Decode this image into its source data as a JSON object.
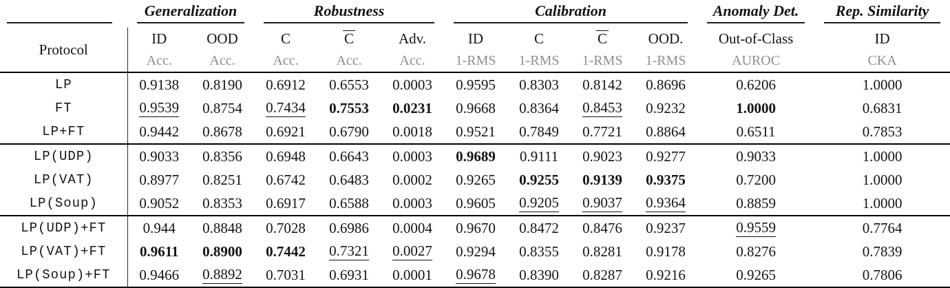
{
  "table": {
    "groups": [
      {
        "label": "",
        "span": 1
      },
      {
        "label": "Generalization",
        "span": 2
      },
      {
        "label": "Robustness",
        "span": 3
      },
      {
        "label": "Calibration",
        "span": 4
      },
      {
        "label": "Anomaly Det.",
        "span": 1
      },
      {
        "label": "Rep. Similarity",
        "span": 1
      }
    ],
    "protocol_header": "Protocol",
    "columns": [
      {
        "top": "ID",
        "sub": "Acc.",
        "overline": false
      },
      {
        "top": "OOD",
        "sub": "Acc.",
        "overline": false
      },
      {
        "top": "C",
        "sub": "Acc.",
        "overline": false
      },
      {
        "top": "C",
        "sub": "Acc.",
        "overline": true
      },
      {
        "top": "Adv.",
        "sub": "Acc.",
        "overline": false
      },
      {
        "top": "ID",
        "sub": "1-RMS",
        "overline": false
      },
      {
        "top": "C",
        "sub": "1-RMS",
        "overline": false
      },
      {
        "top": "C",
        "sub": "1-RMS",
        "overline": true
      },
      {
        "top": "OOD.",
        "sub": "1-RMS",
        "overline": false
      },
      {
        "top": "Out-of-Class",
        "sub": "AUROC",
        "overline": false
      },
      {
        "top": "ID",
        "sub": "CKA",
        "overline": false
      }
    ],
    "rows": [
      {
        "protocol": "LP",
        "block_end": false,
        "cells": [
          {
            "v": "0.9138"
          },
          {
            "v": "0.8190"
          },
          {
            "v": "0.6912"
          },
          {
            "v": "0.6553"
          },
          {
            "v": "0.0003"
          },
          {
            "v": "0.9595"
          },
          {
            "v": "0.8303"
          },
          {
            "v": "0.8142"
          },
          {
            "v": "0.8696"
          },
          {
            "v": "0.6206"
          },
          {
            "v": "1.0000"
          }
        ]
      },
      {
        "protocol": "FT",
        "block_end": false,
        "cells": [
          {
            "v": "0.9539",
            "u": true
          },
          {
            "v": "0.8754"
          },
          {
            "v": "0.7434",
            "u": true
          },
          {
            "v": "0.7553",
            "b": true
          },
          {
            "v": "0.0231",
            "b": true
          },
          {
            "v": "0.9668"
          },
          {
            "v": "0.8364"
          },
          {
            "v": "0.8453",
            "u": true
          },
          {
            "v": "0.9232"
          },
          {
            "v": "1.0000",
            "b": true
          },
          {
            "v": "0.6831"
          }
        ]
      },
      {
        "protocol": "LP+FT",
        "block_end": true,
        "cells": [
          {
            "v": "0.9442"
          },
          {
            "v": "0.8678"
          },
          {
            "v": "0.6921"
          },
          {
            "v": "0.6790"
          },
          {
            "v": "0.0018"
          },
          {
            "v": "0.9521"
          },
          {
            "v": "0.7849"
          },
          {
            "v": "0.7721"
          },
          {
            "v": "0.8864"
          },
          {
            "v": "0.6511"
          },
          {
            "v": "0.7853"
          }
        ]
      },
      {
        "protocol": "LP(UDP)",
        "block_end": false,
        "cells": [
          {
            "v": "0.9033"
          },
          {
            "v": "0.8356"
          },
          {
            "v": "0.6948"
          },
          {
            "v": "0.6643"
          },
          {
            "v": "0.0003"
          },
          {
            "v": "0.9689",
            "b": true
          },
          {
            "v": "0.9111"
          },
          {
            "v": "0.9023"
          },
          {
            "v": "0.9277"
          },
          {
            "v": "0.9033"
          },
          {
            "v": "1.0000"
          }
        ]
      },
      {
        "protocol": "LP(VAT)",
        "block_end": false,
        "cells": [
          {
            "v": "0.8977"
          },
          {
            "v": "0.8251"
          },
          {
            "v": "0.6742"
          },
          {
            "v": "0.6483"
          },
          {
            "v": "0.0002"
          },
          {
            "v": "0.9265"
          },
          {
            "v": "0.9255",
            "b": true
          },
          {
            "v": "0.9139",
            "b": true
          },
          {
            "v": "0.9375",
            "b": true
          },
          {
            "v": "0.7200"
          },
          {
            "v": "1.0000"
          }
        ]
      },
      {
        "protocol": "LP(Soup)",
        "block_end": true,
        "cells": [
          {
            "v": "0.9052"
          },
          {
            "v": "0.8353"
          },
          {
            "v": "0.6917"
          },
          {
            "v": "0.6588"
          },
          {
            "v": "0.0003"
          },
          {
            "v": "0.9605"
          },
          {
            "v": "0.9205",
            "u": true
          },
          {
            "v": "0.9037",
            "u": true
          },
          {
            "v": "0.9364",
            "u": true
          },
          {
            "v": "0.8859"
          },
          {
            "v": "1.0000"
          }
        ]
      },
      {
        "protocol": "LP(UDP)+FT",
        "block_end": false,
        "cells": [
          {
            "v": "0.944"
          },
          {
            "v": "0.8848"
          },
          {
            "v": "0.7028"
          },
          {
            "v": "0.6986"
          },
          {
            "v": "0.0004"
          },
          {
            "v": "0.9670"
          },
          {
            "v": "0.8472"
          },
          {
            "v": "0.8476"
          },
          {
            "v": "0.9237"
          },
          {
            "v": "0.9559",
            "u": true
          },
          {
            "v": "0.7764"
          }
        ]
      },
      {
        "protocol": "LP(VAT)+FT",
        "block_end": false,
        "cells": [
          {
            "v": "0.9611",
            "b": true
          },
          {
            "v": "0.8900",
            "b": true
          },
          {
            "v": "0.7442",
            "b": true
          },
          {
            "v": "0.7321",
            "u": true
          },
          {
            "v": "0.0027",
            "u": true
          },
          {
            "v": "0.9294"
          },
          {
            "v": "0.8355"
          },
          {
            "v": "0.8281"
          },
          {
            "v": "0.9178"
          },
          {
            "v": "0.8276"
          },
          {
            "v": "0.7839"
          }
        ]
      },
      {
        "protocol": "LP(Soup)+FT",
        "block_end": true,
        "cells": [
          {
            "v": "0.9466"
          },
          {
            "v": "0.8892",
            "u": true
          },
          {
            "v": "0.7031"
          },
          {
            "v": "0.6931"
          },
          {
            "v": "0.0001"
          },
          {
            "v": "0.9678",
            "u": true
          },
          {
            "v": "0.8390"
          },
          {
            "v": "0.8287"
          },
          {
            "v": "0.9216"
          },
          {
            "v": "0.9265"
          },
          {
            "v": "0.7806"
          }
        ]
      }
    ]
  },
  "colors": {
    "text": "#141414",
    "muted_label": "#8e8e8e",
    "rule": "#000000"
  }
}
